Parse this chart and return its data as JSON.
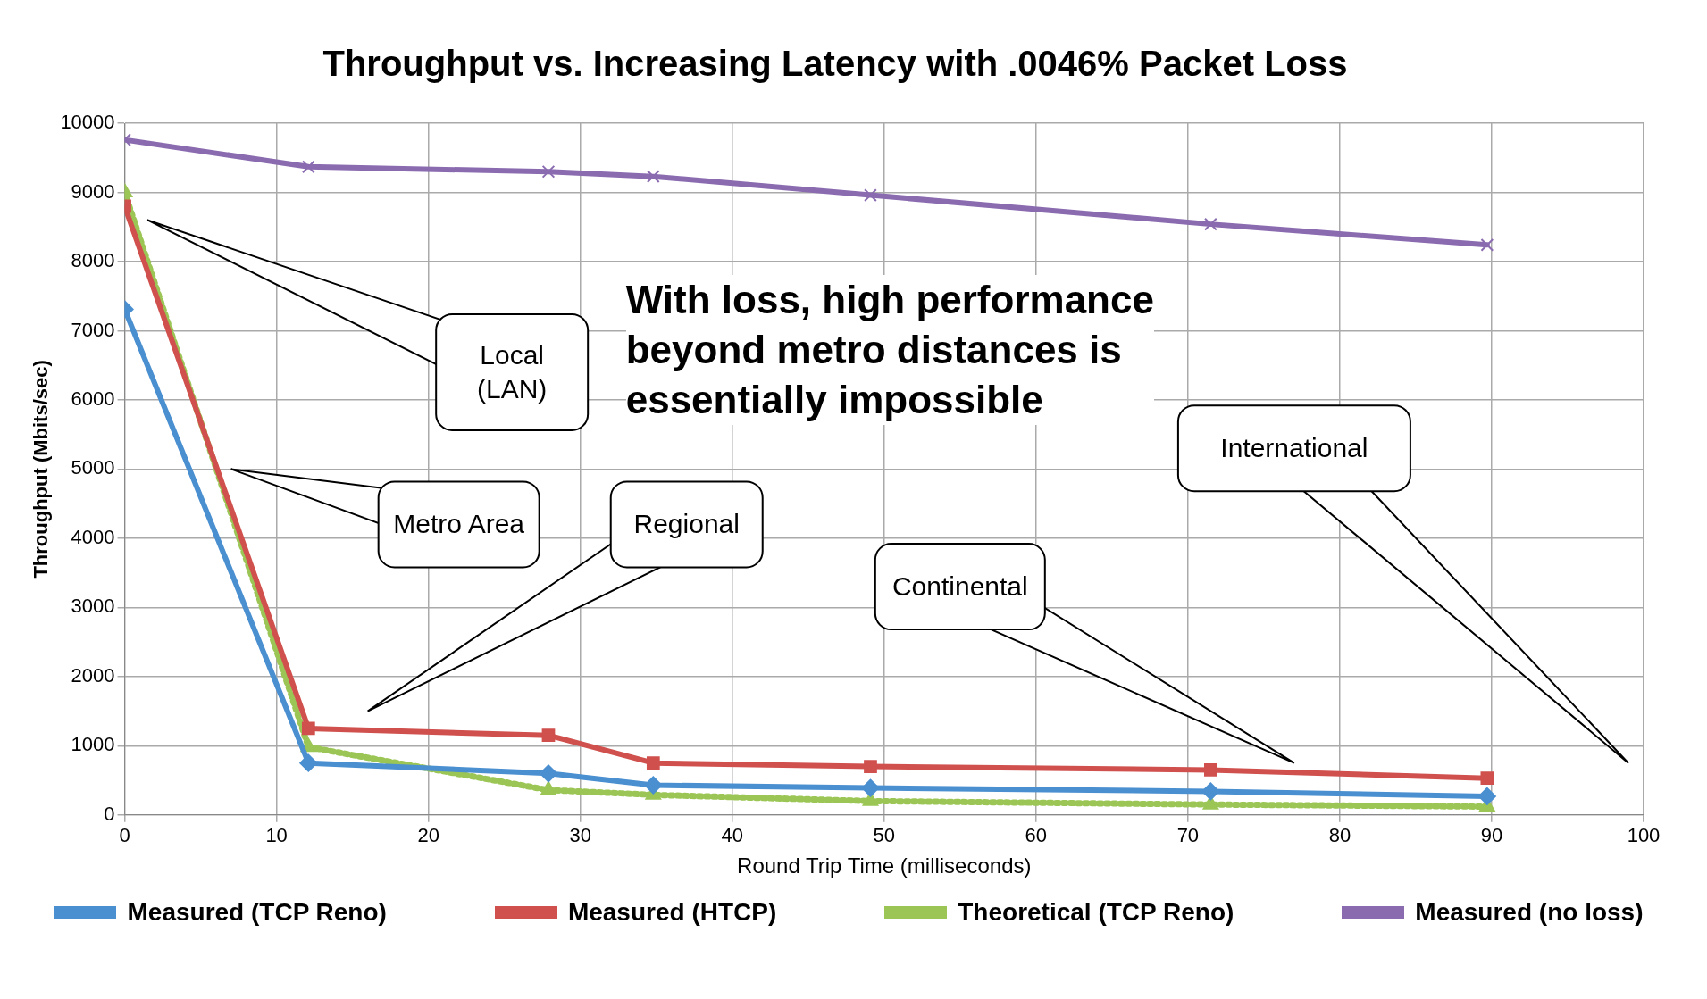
{
  "chart_data": {
    "type": "line",
    "title": "Throughput vs. Increasing Latency with .0046% Packet Loss",
    "xlabel": "Round Trip Time (milliseconds)",
    "ylabel": "Throughput (Mbits/sec)",
    "x": [
      0,
      12.1,
      27.9,
      34.8,
      49.1,
      71.5,
      89.7
    ],
    "series": [
      {
        "name": "Measured (TCP Reno)",
        "color": "#4a8fd0",
        "marker": "diamond",
        "values": [
          7310,
          750,
          600,
          430,
          390,
          340,
          270
        ]
      },
      {
        "name": "Measured (HTCP)",
        "color": "#d0504d",
        "marker": "square",
        "values": [
          8800,
          1250,
          1150,
          750,
          700,
          650,
          530
        ]
      },
      {
        "name": "Theoretical (TCP Reno)",
        "color": "#9bc655",
        "marker": "triangle",
        "line_style": "dotted",
        "values": [
          9000,
          980,
          360,
          290,
          200,
          150,
          120
        ]
      },
      {
        "name": "Measured (no loss)",
        "color": "#8a6bb0",
        "marker": "cross",
        "values": [
          9760,
          9370,
          9300,
          9230,
          8960,
          8540,
          8240
        ]
      }
    ],
    "xlim": [
      0,
      100
    ],
    "xticks": [
      0,
      10,
      20,
      30,
      40,
      50,
      60,
      70,
      80,
      90,
      100
    ],
    "ylim": [
      0,
      10000
    ],
    "yticks": [
      0,
      1000,
      2000,
      3000,
      4000,
      5000,
      6000,
      7000,
      8000,
      9000,
      10000
    ],
    "grid": true,
    "legend": "bottom",
    "annotations": [
      "Local\n(LAN)",
      "Metro Area",
      "Regional",
      "Continental",
      "International",
      "With loss, high performance\nbeyond metro distances is\nessentially impossible"
    ]
  }
}
